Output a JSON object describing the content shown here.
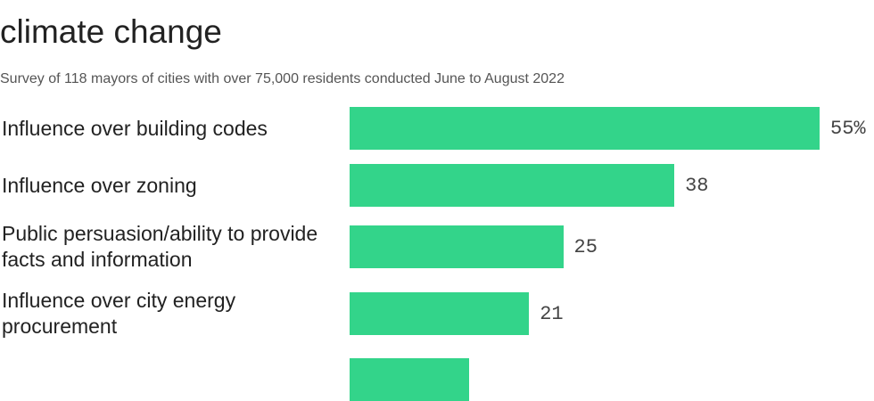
{
  "chart_data": {
    "type": "bar",
    "orientation": "horizontal",
    "title": "climate change",
    "subtitle": "Survey of 118 mayors of cities with over 75,000 residents conducted June to August 2022",
    "categories": [
      "Influence over building codes",
      "Influence over zoning",
      "Public persuasion/ability to provide facts and information",
      "Influence over city energy procurement",
      null
    ],
    "values": [
      55,
      38,
      25,
      21,
      14
    ],
    "value_labels": [
      "55%",
      "38",
      "25",
      "21",
      null
    ],
    "color": "#33d48a",
    "xlim": [
      0,
      55
    ]
  }
}
